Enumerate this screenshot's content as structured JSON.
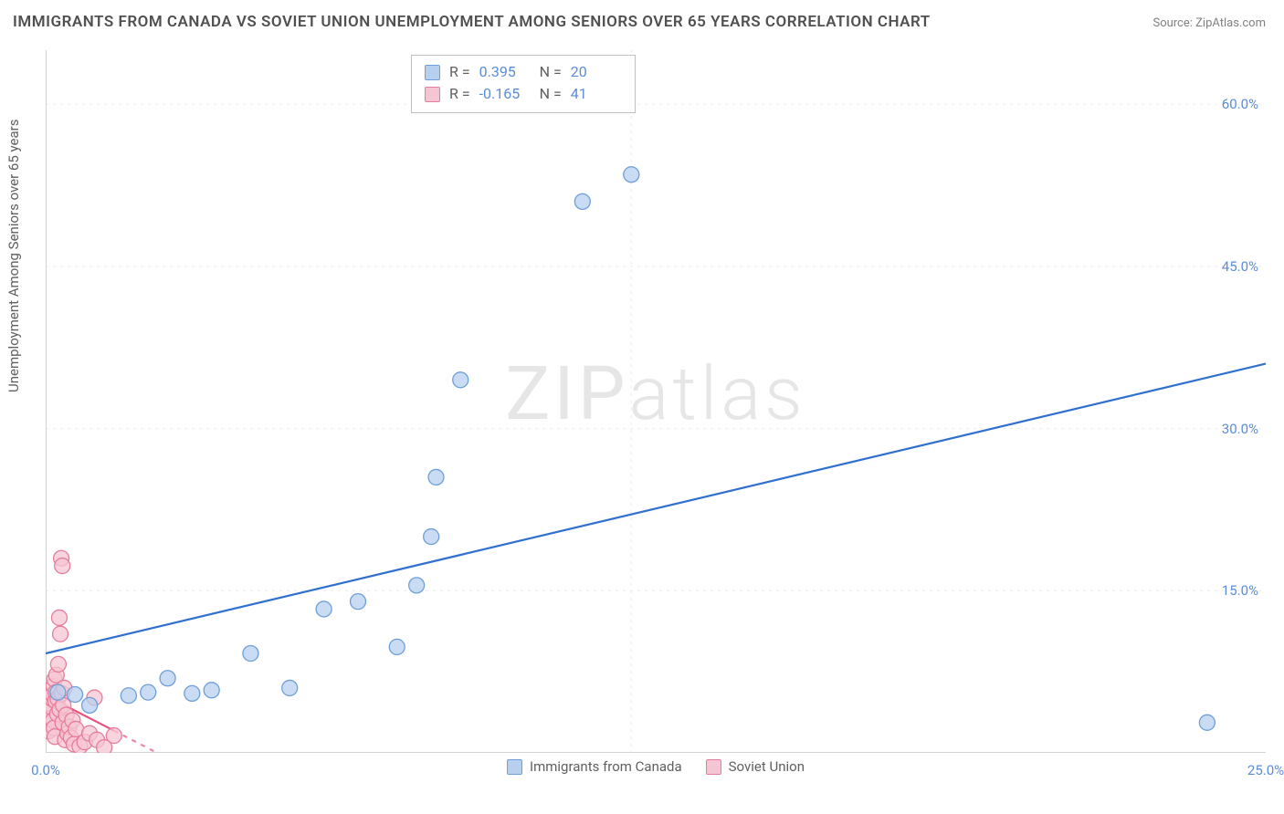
{
  "title": "IMMIGRANTS FROM CANADA VS SOVIET UNION UNEMPLOYMENT AMONG SENIORS OVER 65 YEARS CORRELATION CHART",
  "source_label": "Source: ",
  "source_name": "ZipAtlas.com",
  "ylabel": "Unemployment Among Seniors over 65 years",
  "watermark_1": "ZIP",
  "watermark_2": "atlas",
  "chart": {
    "type": "scatter",
    "background_color": "#ffffff",
    "grid_color": "#ebebeb",
    "axis_color": "#d2d2d2",
    "tick_color": "#5b8dd6",
    "xlim": [
      0,
      25
    ],
    "ylim": [
      0,
      65
    ],
    "xticks": [
      {
        "v": 0,
        "label": "0.0%"
      },
      {
        "v": 25,
        "label": "25.0%"
      }
    ],
    "yticks": [
      {
        "v": 15,
        "label": "15.0%"
      },
      {
        "v": 30,
        "label": "30.0%"
      },
      {
        "v": 45,
        "label": "45.0%"
      },
      {
        "v": 60,
        "label": "60.0%"
      }
    ],
    "xgrid": [
      12
    ],
    "series": [
      {
        "name": "Immigrants from Canada",
        "color_fill": "#b7d0ef",
        "color_stroke": "#6f9fd8",
        "line_color": "#2f6fd0",
        "line_width": 2.2,
        "marker_r": 8.5,
        "R_label": "R =",
        "R": "0.395",
        "N_label": "N =",
        "N": "20",
        "trend": {
          "x1": 0,
          "y1": 9.2,
          "x2": 25,
          "y2": 36.0
        },
        "points": [
          {
            "x": 0.25,
            "y": 5.6
          },
          {
            "x": 0.6,
            "y": 5.4
          },
          {
            "x": 0.9,
            "y": 4.4
          },
          {
            "x": 1.7,
            "y": 5.3
          },
          {
            "x": 2.1,
            "y": 5.6
          },
          {
            "x": 2.5,
            "y": 6.9
          },
          {
            "x": 3.0,
            "y": 5.5
          },
          {
            "x": 3.4,
            "y": 5.8
          },
          {
            "x": 4.2,
            "y": 9.2
          },
          {
            "x": 5.0,
            "y": 6.0
          },
          {
            "x": 5.7,
            "y": 13.3
          },
          {
            "x": 6.4,
            "y": 14.0
          },
          {
            "x": 7.2,
            "y": 9.8
          },
          {
            "x": 7.6,
            "y": 15.5
          },
          {
            "x": 7.9,
            "y": 20.0
          },
          {
            "x": 8.0,
            "y": 25.5
          },
          {
            "x": 8.5,
            "y": 34.5
          },
          {
            "x": 11.0,
            "y": 51.0
          },
          {
            "x": 12.0,
            "y": 53.5
          },
          {
            "x": 23.8,
            "y": 2.8
          }
        ]
      },
      {
        "name": "Soviet Union",
        "color_fill": "#f5c5d3",
        "color_stroke": "#e77d9d",
        "line_color": "#e5537c",
        "line_width": 2.2,
        "marker_r": 8.5,
        "R_label": "R =",
        "R": "-0.165",
        "N_label": "N =",
        "N": "41",
        "trend": {
          "x1": 0,
          "y1": 5.3,
          "x2": 2.5,
          "y2": -0.5
        },
        "points": [
          {
            "x": 0.06,
            "y": 2.0
          },
          {
            "x": 0.08,
            "y": 3.2
          },
          {
            "x": 0.1,
            "y": 4.5
          },
          {
            "x": 0.12,
            "y": 4.2
          },
          {
            "x": 0.13,
            "y": 5.0
          },
          {
            "x": 0.14,
            "y": 5.4
          },
          {
            "x": 0.15,
            "y": 3.0
          },
          {
            "x": 0.16,
            "y": 6.2
          },
          {
            "x": 0.17,
            "y": 2.3
          },
          {
            "x": 0.18,
            "y": 6.8
          },
          {
            "x": 0.19,
            "y": 1.5
          },
          {
            "x": 0.2,
            "y": 4.8
          },
          {
            "x": 0.21,
            "y": 5.6
          },
          {
            "x": 0.22,
            "y": 7.2
          },
          {
            "x": 0.24,
            "y": 3.6
          },
          {
            "x": 0.25,
            "y": 5.0
          },
          {
            "x": 0.26,
            "y": 8.2
          },
          {
            "x": 0.28,
            "y": 12.5
          },
          {
            "x": 0.29,
            "y": 4.0
          },
          {
            "x": 0.3,
            "y": 11.0
          },
          {
            "x": 0.32,
            "y": 18.0
          },
          {
            "x": 0.33,
            "y": 5.5
          },
          {
            "x": 0.34,
            "y": 17.3
          },
          {
            "x": 0.35,
            "y": 2.8
          },
          {
            "x": 0.36,
            "y": 4.4
          },
          {
            "x": 0.38,
            "y": 6.0
          },
          {
            "x": 0.4,
            "y": 1.2
          },
          {
            "x": 0.42,
            "y": 3.5
          },
          {
            "x": 0.45,
            "y": 1.8
          },
          {
            "x": 0.48,
            "y": 2.4
          },
          {
            "x": 0.52,
            "y": 1.4
          },
          {
            "x": 0.55,
            "y": 3.0
          },
          {
            "x": 0.58,
            "y": 0.8
          },
          {
            "x": 0.62,
            "y": 2.2
          },
          {
            "x": 0.7,
            "y": 0.6
          },
          {
            "x": 0.8,
            "y": 1.0
          },
          {
            "x": 0.9,
            "y": 1.8
          },
          {
            "x": 1.0,
            "y": 5.1
          },
          {
            "x": 1.05,
            "y": 1.2
          },
          {
            "x": 1.2,
            "y": 0.5
          },
          {
            "x": 1.4,
            "y": 1.6
          }
        ]
      }
    ],
    "legend": {
      "items": [
        {
          "label": "Immigrants from Canada",
          "fill": "#b7d0ef",
          "stroke": "#6f9fd8"
        },
        {
          "label": "Soviet Union",
          "fill": "#f5c5d3",
          "stroke": "#e77d9d"
        }
      ]
    }
  }
}
